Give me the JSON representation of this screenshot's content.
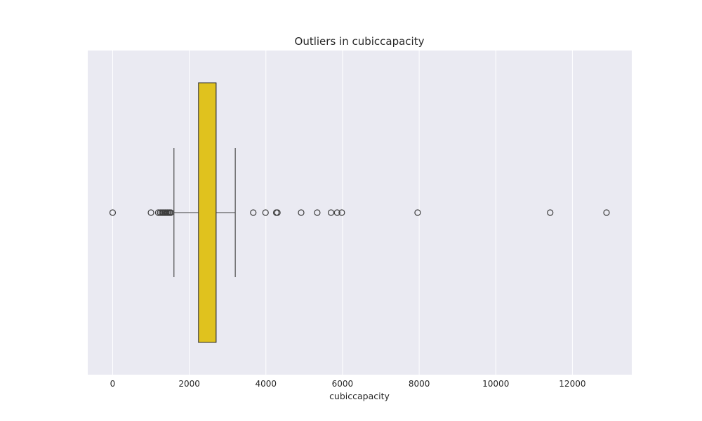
{
  "chart_data": {
    "type": "boxplot",
    "orientation": "horizontal",
    "title": "Outliers in cubiccapacity",
    "xlabel": "cubiccapacity",
    "ylabel": "",
    "xlim": [
      -650,
      13550
    ],
    "x_ticks": [
      0,
      2000,
      4000,
      6000,
      8000,
      10000,
      12000
    ],
    "grid": true,
    "style": "seaborn-darkgrid",
    "colors": {
      "plot_background": "#eaeaf2",
      "gridline": "#ffffff",
      "box_fill": "#e0c21e",
      "line": "#3d3d3d"
    },
    "box": {
      "whisker_low": 1600,
      "q1": 2240,
      "median": 2700,
      "q3": 2700,
      "whisker_high": 3200
    },
    "outliers": [
      0,
      1000,
      1190,
      1240,
      1280,
      1310,
      1340,
      1370,
      1400,
      1430,
      1460,
      1490,
      1520,
      3670,
      3990,
      4270,
      4300,
      4920,
      5340,
      5700,
      5860,
      5980,
      7960,
      11420,
      12890
    ]
  }
}
